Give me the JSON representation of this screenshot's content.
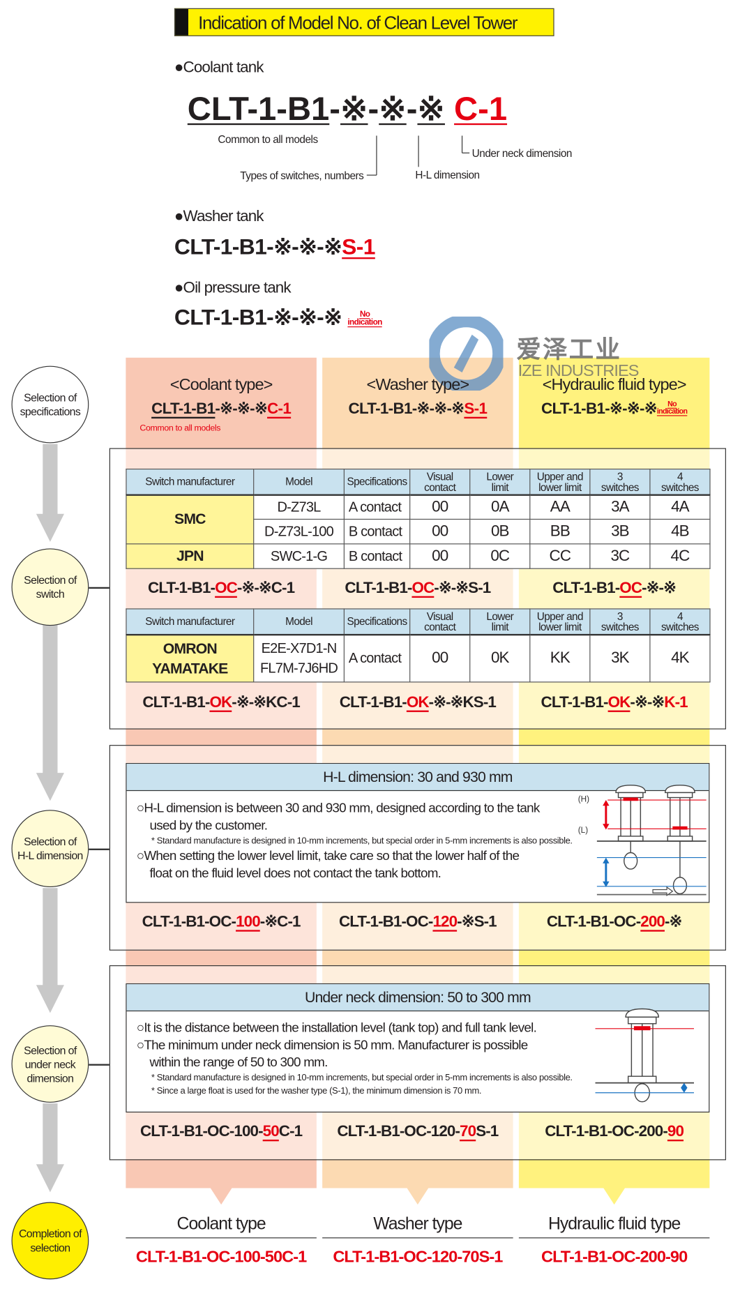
{
  "title": "Indication of Model No. of Clean Level Tower",
  "colors": {
    "accent_red": "#e60012",
    "title_yellow": "#fff200",
    "header_blue": "#c9e2ef",
    "coolant": "#f9c8b4",
    "washer": "#fcdab2",
    "hydraulic": "#fff27e",
    "completion": "#ffef00"
  },
  "watermark": {
    "logo": "ize-logo",
    "cn": "爱泽工业",
    "en": "IZE INDUSTRIES"
  },
  "overview": {
    "coolant_tank": {
      "heading": "●Coolant tank",
      "model": [
        {
          "text": "CLT-1-B1",
          "u": 1
        },
        {
          "text": "-"
        },
        {
          "text": "※",
          "u": 1
        },
        {
          "text": "-"
        },
        {
          "text": "※",
          "u": 1
        },
        {
          "text": "-"
        },
        {
          "text": "※",
          "u": 1
        },
        {
          "text": " "
        },
        {
          "text": "C-1",
          "red": 1,
          "u": 1
        }
      ],
      "labels": {
        "common": "Common to all models",
        "switch_types": "Types of switches, numbers",
        "hl": "H-L dimension",
        "under_neck": "Under neck dimension"
      }
    },
    "washer_tank": {
      "heading": "●Washer tank",
      "model": [
        {
          "text": "CLT-1-B1-※-※-※"
        },
        {
          "text": "S-1",
          "red": 1,
          "u": 1
        }
      ]
    },
    "oil_tank": {
      "heading": "●Oil pressure tank",
      "model": [
        {
          "text": "CLT-1-B1-※-※-※"
        }
      ],
      "note": "No\nindication"
    }
  },
  "columns": [
    {
      "type": "<Coolant type>",
      "model": [
        {
          "text": "CLT-1-B1",
          "u": 1
        },
        {
          "text": "-※-※-※"
        },
        {
          "text": "C-1",
          "red": 1,
          "u": 1
        }
      ],
      "sub": "Common to all models"
    },
    {
      "type": "<Washer type>",
      "model": [
        {
          "text": "CLT-1-B1-※-※-※"
        },
        {
          "text": "S-1",
          "red": 1,
          "u": 1
        }
      ]
    },
    {
      "type": "<Hydraulic fluid type>",
      "model": [
        {
          "text": "CLT-1-B1-※-※-※"
        }
      ],
      "note": "No\nindication"
    }
  ],
  "flow_steps": [
    "Selection of\nspecifications",
    "Selection of\nswitch",
    "Selection of\nH-L dimension",
    "Selection of\nunder neck\ndimension",
    "Completion of\nselection"
  ],
  "switch_table_1": {
    "headers": [
      "Switch manufacturer",
      "Model",
      "Specifications",
      "Visual\ncontact",
      "Lower\nlimit",
      "Upper and\nlower limit",
      "3\nswitches",
      "4\nswitches"
    ],
    "groups": [
      {
        "manufacturer": "SMC",
        "rows": [
          [
            "D-Z73L",
            "A contact",
            "00",
            "0A",
            "AA",
            "3A",
            "4A"
          ],
          [
            "D-Z73L-100",
            "B contact",
            "00",
            "0B",
            "BB",
            "3B",
            "4B"
          ]
        ]
      },
      {
        "manufacturer": "JPN",
        "rows": [
          [
            "SWC-1-G",
            "B contact",
            "00",
            "0C",
            "CC",
            "3C",
            "4C"
          ]
        ]
      }
    ]
  },
  "switch_models_1": [
    [
      {
        "text": "CLT-1-B1-"
      },
      {
        "text": "OC",
        "red": 1,
        "u": 1
      },
      {
        "text": "-※-※C-1"
      }
    ],
    [
      {
        "text": "CLT-1-B1-"
      },
      {
        "text": "OC",
        "red": 1,
        "u": 1
      },
      {
        "text": "-※-※S-1"
      }
    ],
    [
      {
        "text": "CLT-1-B1-"
      },
      {
        "text": "OC",
        "red": 1,
        "u": 1
      },
      {
        "text": "-※-※"
      }
    ]
  ],
  "switch_table_2": {
    "headers": [
      "Switch manufacturer",
      "Model",
      "Specifications",
      "Visual\ncontact",
      "Lower\nlimit",
      "Upper and\nlower limit",
      "3\nswitches",
      "4\nswitches"
    ],
    "groups": [
      {
        "manufacturer": "OMRON\nYAMATAKE",
        "rows": [
          [
            "E2E-X7D1-N\nFL7M-7J6HD",
            "A contact",
            "00",
            "0K",
            "KK",
            "3K",
            "4K"
          ]
        ]
      }
    ]
  },
  "switch_models_2": [
    [
      {
        "text": "CLT-1-B1-"
      },
      {
        "text": "OK",
        "red": 1,
        "u": 1
      },
      {
        "text": "-※-※KC-1"
      }
    ],
    [
      {
        "text": "CLT-1-B1-"
      },
      {
        "text": "OK",
        "red": 1,
        "u": 1
      },
      {
        "text": "-※-※KS-1"
      }
    ],
    [
      {
        "text": "CLT-1-B1-"
      },
      {
        "text": "OK",
        "red": 1,
        "u": 1
      },
      {
        "text": "-※-※"
      },
      {
        "text": "K-1",
        "red": 1
      }
    ]
  ],
  "hl": {
    "heading": "H-L dimension: 30 and 930 mm",
    "p1": "○H-L dimension is between 30 and 930 mm, designed according to the tank",
    "p1b": "used by the customer.",
    "n1": "* Standard manufacture is designed in 10-mm increments, but special order in 5-mm increments is also possible.",
    "p2": "○When setting the lower level limit, take care so that the lower half of the",
    "p2b": "float on the fluid level does not contact the tank bottom.",
    "h_label": "(H)",
    "l_label": "(L)",
    "models": [
      [
        {
          "text": "CLT-1-B1-OC-"
        },
        {
          "text": "100",
          "red": 1,
          "u": 1
        },
        {
          "text": "-※C-1"
        }
      ],
      [
        {
          "text": "CLT-1-B1-OC-"
        },
        {
          "text": "120",
          "red": 1,
          "u": 1
        },
        {
          "text": "-※S-1"
        }
      ],
      [
        {
          "text": "CLT-1-B1-OC-"
        },
        {
          "text": "200",
          "red": 1,
          "u": 1
        },
        {
          "text": "-※"
        }
      ]
    ]
  },
  "under_neck": {
    "heading": "Under neck dimension: 50 to 300 mm",
    "p1": "○It is the distance between the installation level (tank top) and full tank level.",
    "p2": "○The minimum under neck dimension is 50 mm. Manufacturer is possible",
    "p2b": "within the range of 50 to 300 mm.",
    "n1": "* Standard manufacture is designed in 10-mm increments, but special order in 5-mm increments is also possible.",
    "n2": "* Since a large float is used for the washer type (S-1), the minimum dimension is 70 mm.",
    "models": [
      [
        {
          "text": "CLT-1-B1-OC-100-"
        },
        {
          "text": "50",
          "red": 1,
          "u": 1
        },
        {
          "text": "C-1"
        }
      ],
      [
        {
          "text": "CLT-1-B1-OC-120-"
        },
        {
          "text": "70",
          "red": 1,
          "u": 1
        },
        {
          "text": "S-1"
        }
      ],
      [
        {
          "text": "CLT-1-B1-OC-200-"
        },
        {
          "text": "90",
          "red": 1,
          "u": 1
        }
      ]
    ]
  },
  "completion": [
    {
      "label": "Coolant type",
      "model": "CLT-1-B1-OC-100-50C-1"
    },
    {
      "label": "Washer type",
      "model": "CLT-1-B1-OC-120-70S-1"
    },
    {
      "label": "Hydraulic fluid type",
      "model": "CLT-1-B1-OC-200-90"
    }
  ]
}
